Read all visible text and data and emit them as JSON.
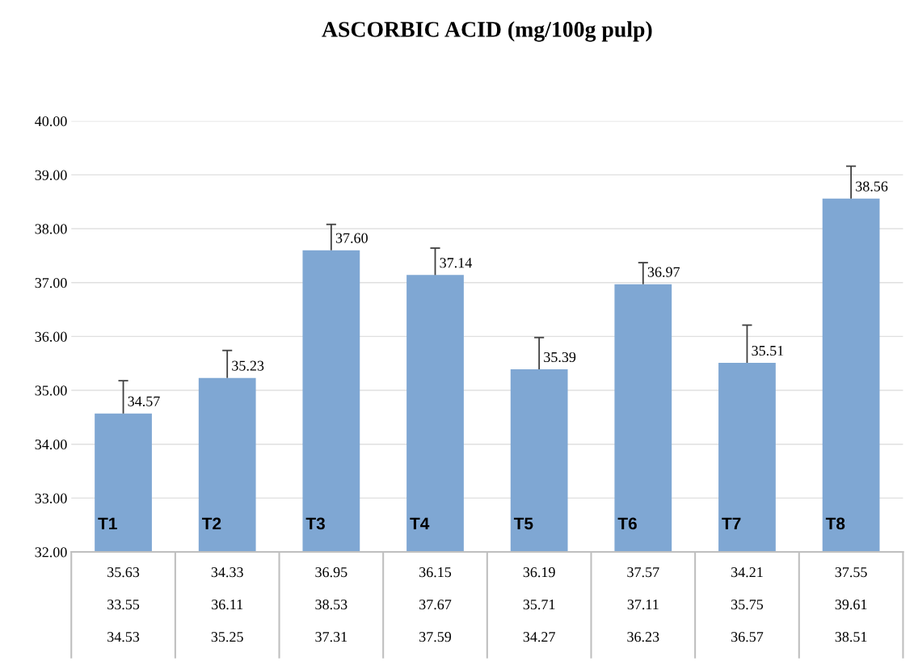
{
  "chart_data": {
    "type": "bar",
    "title": "ASCORBIC ACID (mg/100g pulp)",
    "categories": [
      "T1",
      "T2",
      "T3",
      "T4",
      "T5",
      "T6",
      "T7",
      "T8"
    ],
    "values": [
      34.57,
      35.23,
      37.6,
      37.14,
      35.39,
      36.97,
      35.51,
      38.56
    ],
    "value_labels": [
      "34.57",
      "35.23",
      "37.60",
      "37.14",
      "35.39",
      "36.97",
      "35.51",
      "38.56"
    ],
    "errors": [
      [
        34.57,
        35.18
      ],
      [
        35.23,
        35.74
      ],
      [
        37.6,
        38.08
      ],
      [
        37.14,
        37.64
      ],
      [
        35.39,
        35.98
      ],
      [
        36.97,
        37.37
      ],
      [
        35.51,
        36.21
      ],
      [
        38.56,
        39.16
      ]
    ],
    "color": "#7fa7d3",
    "ylim": [
      32,
      40
    ],
    "yticks": [
      {
        "value": 32,
        "label": "32.00"
      },
      {
        "value": 33,
        "label": "33.00"
      },
      {
        "value": 34,
        "label": "34.00"
      },
      {
        "value": 35,
        "label": "35.00"
      },
      {
        "value": 36,
        "label": "36.00"
      },
      {
        "value": 37,
        "label": "37.00"
      },
      {
        "value": 38,
        "label": "38.00"
      },
      {
        "value": 39,
        "label": "39.00"
      },
      {
        "value": 40,
        "label": "40.00"
      }
    ],
    "grid": "y",
    "annotations": [
      "35.63",
      "34.33",
      "36.95",
      "36.15",
      "36.19",
      "37.57",
      "34.21",
      "37.55",
      "33.55",
      "36.11",
      "38.53",
      "37.67",
      "35.71",
      "37.11",
      "35.75",
      "39.61",
      "34.53",
      "35.25",
      "37.31",
      "37.59",
      "34.27",
      "36.23",
      "36.57",
      "38.51"
    ]
  }
}
